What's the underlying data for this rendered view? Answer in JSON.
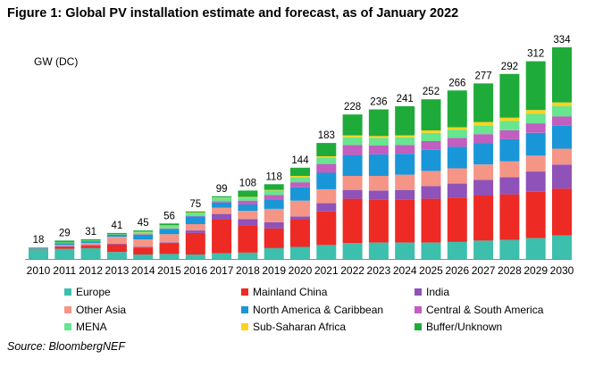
{
  "chart_data": {
    "type": "bar",
    "stacked": true,
    "title": "Figure 1:  Global PV installation estimate and forecast, as of January 2022",
    "ylabel": "GW (DC)",
    "xlabel": "",
    "ylim": [
      0,
      334
    ],
    "source": "Source: BloombergNEF",
    "categories": [
      "2010",
      "2011",
      "2012",
      "2013",
      "2014",
      "2015",
      "2016",
      "2017",
      "2018",
      "2019",
      "2020",
      "2021",
      "2022",
      "2023",
      "2024",
      "2025",
      "2026",
      "2027",
      "2028",
      "2029",
      "2030"
    ],
    "totals": [
      18,
      29,
      31,
      41,
      45,
      56,
      75,
      99,
      108,
      118,
      144,
      183,
      228,
      236,
      241,
      252,
      266,
      277,
      292,
      312,
      334
    ],
    "series": [
      {
        "name": "Europe",
        "color": "#3dbfae",
        "values": [
          14,
          16,
          17,
          11,
          7,
          8,
          7,
          9,
          10,
          17,
          19,
          22,
          25,
          26,
          26,
          26,
          27,
          29,
          30,
          33,
          37
        ]
      },
      {
        "name": "Mainland China",
        "color": "#ed2a24",
        "values": [
          1,
          3,
          4,
          12,
          11,
          16,
          34,
          53,
          43,
          31,
          43,
          53,
          70,
          68,
          68,
          69,
          70,
          71,
          72,
          73,
          74
        ]
      },
      {
        "name": "India",
        "color": "#8f52b8",
        "values": [
          0,
          1,
          1,
          1,
          1,
          2,
          4,
          9,
          10,
          10,
          5,
          13,
          14,
          14,
          15,
          20,
          22,
          25,
          27,
          32,
          38
        ]
      },
      {
        "name": "Other Asia",
        "color": "#f59586",
        "values": [
          1,
          2,
          3,
          11,
          12,
          13,
          10,
          10,
          13,
          21,
          25,
          22,
          22,
          23,
          24,
          24,
          24,
          24,
          25,
          25,
          25
        ]
      },
      {
        "name": "North America & Caribbean",
        "color": "#1996d8",
        "values": [
          1,
          3,
          3,
          3,
          7,
          8,
          12,
          8,
          10,
          14,
          21,
          26,
          33,
          34,
          33,
          33,
          34,
          34,
          35,
          36,
          36
        ]
      },
      {
        "name": "Central & South America",
        "color": "#c15ec0",
        "values": [
          0,
          0,
          0,
          0,
          1,
          1,
          1,
          2,
          6,
          8,
          8,
          14,
          16,
          14,
          14,
          14,
          14,
          14,
          14,
          15,
          15
        ]
      },
      {
        "name": "MENA",
        "color": "#67e58f",
        "values": [
          0,
          1,
          1,
          1,
          3,
          4,
          4,
          5,
          5,
          7,
          8,
          10,
          12,
          12,
          12,
          13,
          13,
          14,
          15,
          15,
          16
        ]
      },
      {
        "name": "Sub-Saharan Africa",
        "color": "#ffd21e",
        "values": [
          0,
          0,
          0,
          0,
          1,
          1,
          1,
          1,
          1,
          1,
          2,
          2,
          3,
          3,
          3,
          4,
          4,
          5,
          5,
          6,
          6
        ]
      },
      {
        "name": "Buffer/Unknown",
        "color": "#1fab3a",
        "values": [
          1,
          3,
          2,
          2,
          2,
          3,
          2,
          2,
          10,
          9,
          13,
          21,
          33,
          42,
          46,
          49,
          58,
          61,
          69,
          77,
          87
        ]
      }
    ],
    "legend": [
      "Europe",
      "Mainland China",
      "India",
      "Other Asia",
      "North America & Caribbean",
      "Central & South America",
      "MENA",
      "Sub-Saharan Africa",
      "Buffer/Unknown"
    ],
    "legend_position": "bottom",
    "grid": false
  }
}
